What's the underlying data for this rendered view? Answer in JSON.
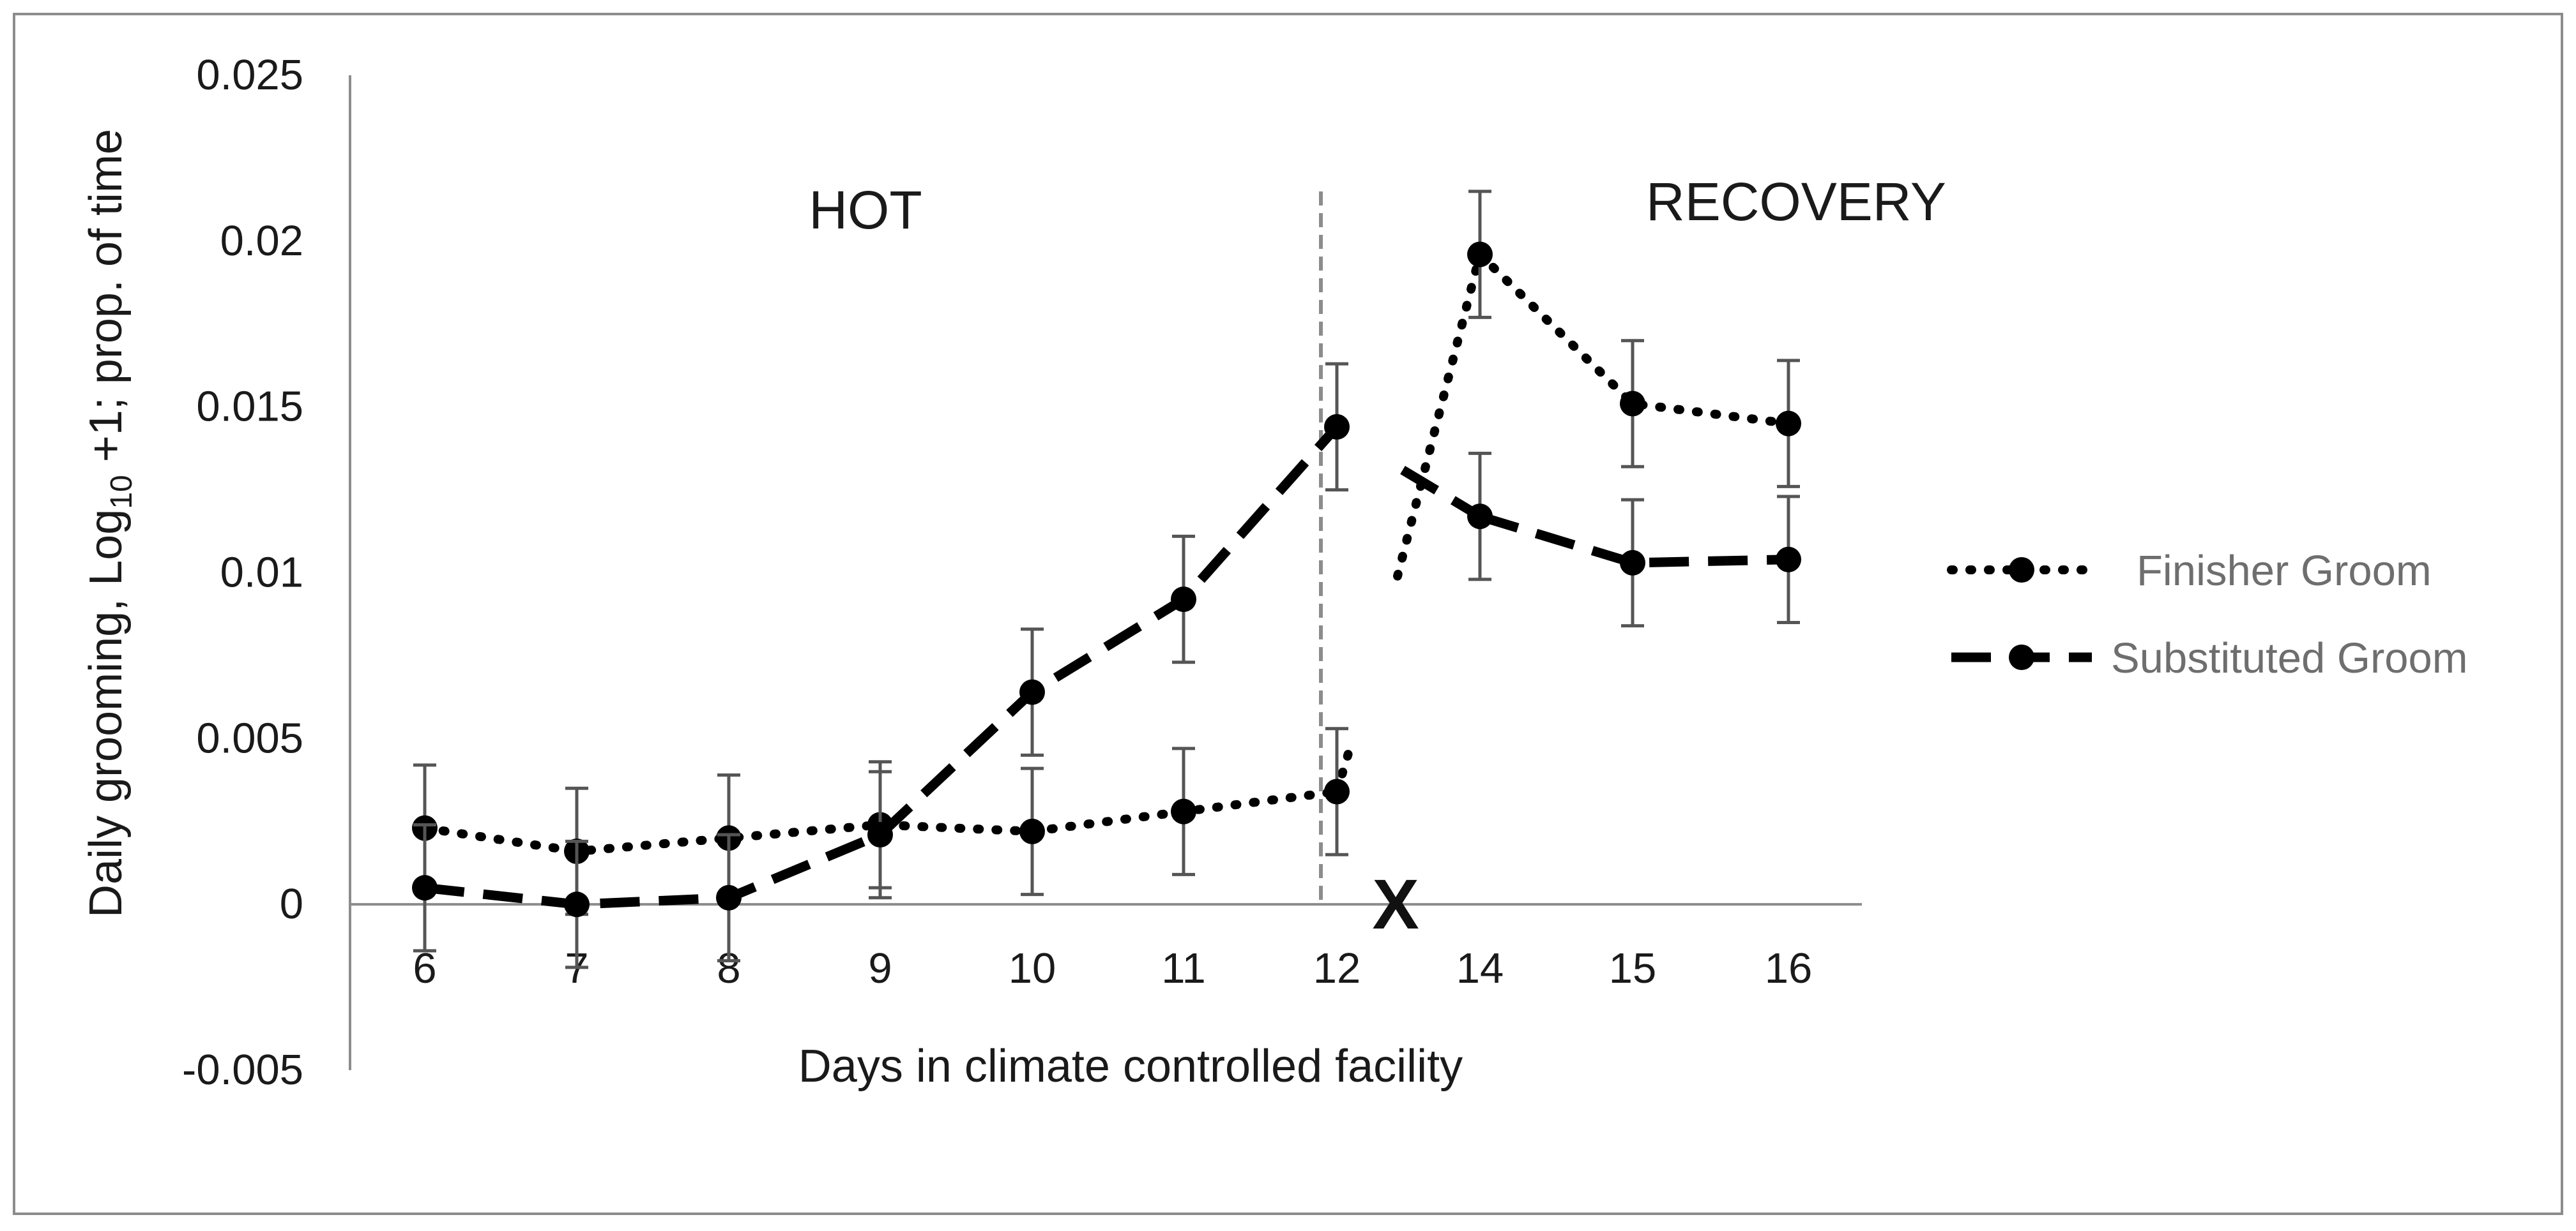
{
  "chart_data": {
    "type": "line",
    "title": "",
    "xlabel": "Days in climate controlled facility",
    "ylabel_main": "Daily grooming, Log",
    "ylabel_sub": "10",
    "ylabel_tail": " +1; prop. of time",
    "ylim": [
      -0.005,
      0.025
    ],
    "yticks": [
      "0.025",
      "0.02",
      "0.015",
      "0.01",
      "0.005",
      "0",
      "-0.005"
    ],
    "categories": [
      "6",
      "7",
      "8",
      "9",
      "10",
      "11",
      "12",
      "14",
      "15",
      "16"
    ],
    "missing_day_marker": "X",
    "regions": [
      {
        "label": "HOT"
      },
      {
        "label": "RECOVERY"
      }
    ],
    "grid": false,
    "legend_position": "right",
    "series": [
      {
        "name": "Finisher Groom",
        "style": "dotted",
        "color": "#000000",
        "values": [
          0.0023,
          0.0016,
          0.002,
          0.0024,
          0.0022,
          0.0028,
          0.0034,
          0.0196,
          0.0151,
          0.0145
        ],
        "errors": [
          0.0019,
          0.0019,
          0.0019,
          0.0019,
          0.0019,
          0.0019,
          0.0019,
          0.0019,
          0.0019,
          0.0019
        ]
      },
      {
        "name": "Substituted Groom",
        "style": "dashed",
        "color": "#000000",
        "values": [
          0.0005,
          0.0,
          0.0002,
          0.0021,
          0.0064,
          0.0092,
          0.0144,
          0.0117,
          0.0103,
          0.0104
        ],
        "errors": [
          0.0019,
          0.0019,
          0.0019,
          0.0019,
          0.0019,
          0.0019,
          0.0019,
          0.0019,
          0.0019,
          0.0019
        ]
      }
    ]
  }
}
